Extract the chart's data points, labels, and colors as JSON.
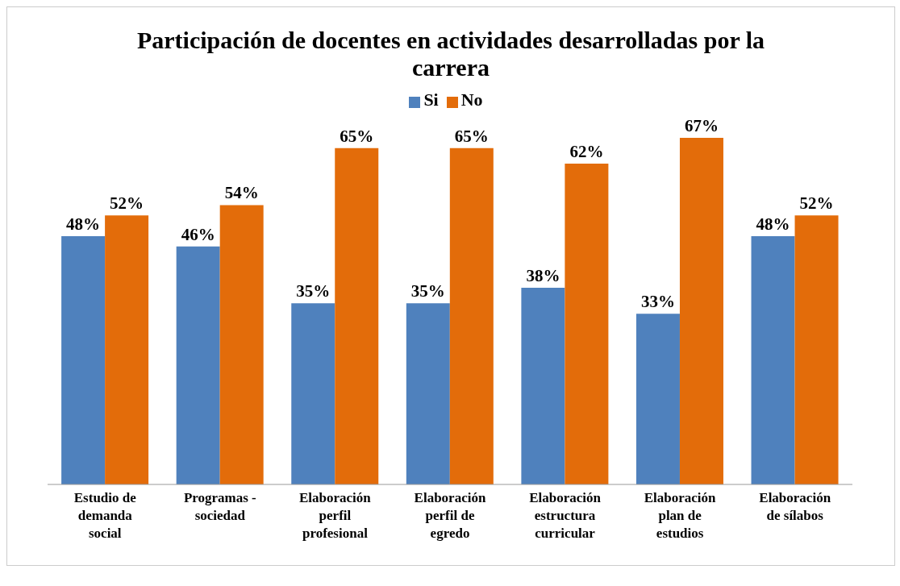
{
  "chart_data": {
    "type": "bar",
    "title": "Participación de docentes en actividades desarrolladas por la carrera",
    "categories": [
      "Estudio de demanda social",
      "Programas - sociedad",
      "Elaboración perfil profesional",
      "Elaboración perfil de egredo",
      "Elaboración estructura curricular",
      "Elaboración plan de estudios",
      "Elaboración de sílabos"
    ],
    "series": [
      {
        "name": "Si",
        "color": "#4f81bd",
        "values": [
          48,
          46,
          35,
          35,
          38,
          33,
          48
        ],
        "value_labels": [
          "48%",
          "46%",
          "35%",
          "35%",
          "38%",
          "33%",
          "48%"
        ]
      },
      {
        "name": "No",
        "color": "#e36c0a",
        "values": [
          52,
          54,
          65,
          65,
          62,
          67,
          52
        ],
        "value_labels": [
          "52%",
          "54%",
          "65%",
          "65%",
          "62%",
          "67%",
          "52%"
        ]
      }
    ],
    "legend": "top",
    "grid": false
  }
}
